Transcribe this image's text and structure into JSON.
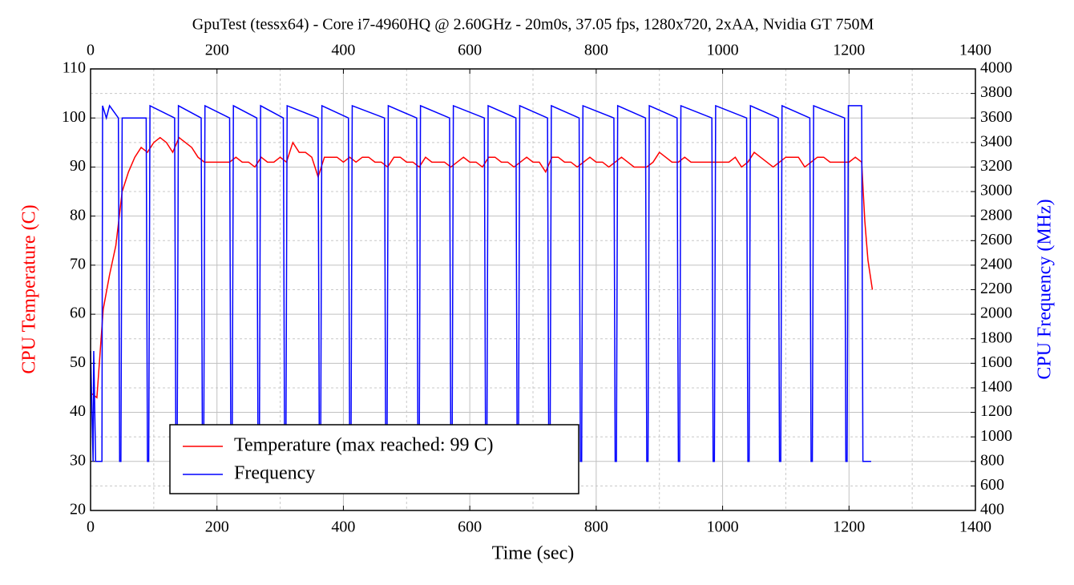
{
  "chart_data": {
    "type": "line",
    "title": "GpuTest (tessx64) - Core i7-4960HQ @ 2.60GHz - 20m0s, 37.05 fps, 1280x720, 2xAA, Nvidia GT 750M",
    "xlabel": "Time (sec)",
    "ylabel": "CPU Temperature (C)",
    "y2label": "CPU Frequency (MHz)",
    "ylabel_color": "#ff0000",
    "y2label_color": "#0000ff",
    "xlim": [
      0,
      1400
    ],
    "xticks": [
      0,
      200,
      400,
      600,
      800,
      1000,
      1200,
      1400
    ],
    "ylim": [
      20,
      110
    ],
    "yticks": [
      20,
      30,
      40,
      50,
      60,
      70,
      80,
      90,
      100,
      110
    ],
    "y2lim": [
      400,
      4000
    ],
    "y2ticks": [
      400,
      600,
      800,
      1000,
      1200,
      1400,
      1600,
      1800,
      2000,
      2200,
      2400,
      2600,
      2800,
      3000,
      3200,
      3400,
      3600,
      3800,
      4000
    ],
    "grid": true,
    "legend": "lower left",
    "series": [
      {
        "name": "Temperature (max reached: 99 C)",
        "color": "#ff0000",
        "x": [
          0,
          10,
          20,
          30,
          40,
          50,
          60,
          70,
          80,
          90,
          100,
          110,
          120,
          130,
          140,
          150,
          160,
          170,
          180,
          190,
          200,
          210,
          220,
          230,
          240,
          250,
          260,
          270,
          280,
          290,
          300,
          310,
          320,
          330,
          340,
          350,
          360,
          370,
          380,
          390,
          400,
          410,
          420,
          430,
          440,
          450,
          460,
          470,
          480,
          490,
          500,
          510,
          520,
          530,
          540,
          550,
          560,
          570,
          580,
          590,
          600,
          610,
          620,
          630,
          640,
          650,
          660,
          670,
          680,
          690,
          700,
          710,
          720,
          730,
          740,
          750,
          760,
          770,
          780,
          790,
          800,
          810,
          820,
          830,
          840,
          850,
          860,
          870,
          880,
          890,
          900,
          910,
          920,
          930,
          940,
          950,
          960,
          970,
          980,
          990,
          1000,
          1010,
          1020,
          1030,
          1040,
          1050,
          1060,
          1070,
          1080,
          1090,
          1100,
          1110,
          1120,
          1130,
          1140,
          1150,
          1160,
          1170,
          1180,
          1190,
          1200,
          1210,
          1220,
          1225,
          1230,
          1237
        ],
        "values": [
          44,
          43,
          61,
          68,
          74,
          85,
          89,
          92,
          94,
          93,
          95,
          96,
          95,
          93,
          96,
          95,
          94,
          92,
          91,
          91,
          91,
          91,
          91,
          92,
          91,
          91,
          90,
          92,
          91,
          91,
          92,
          91,
          95,
          93,
          93,
          92,
          88,
          92,
          92,
          92,
          91,
          92,
          91,
          92,
          92,
          91,
          91,
          90,
          92,
          92,
          91,
          91,
          90,
          92,
          91,
          91,
          91,
          90,
          91,
          92,
          91,
          91,
          90,
          92,
          92,
          91,
          91,
          90,
          91,
          92,
          91,
          91,
          89,
          92,
          92,
          91,
          91,
          90,
          91,
          92,
          91,
          91,
          90,
          91,
          92,
          91,
          90,
          90,
          90,
          91,
          93,
          92,
          91,
          91,
          92,
          91,
          91,
          91,
          91,
          91,
          91,
          91,
          92,
          90,
          91,
          93,
          92,
          91,
          90,
          91,
          92,
          92,
          92,
          90,
          91,
          92,
          92,
          91,
          91,
          91,
          91,
          92,
          91,
          79,
          71,
          65
        ]
      },
      {
        "name": "Frequency",
        "color": "#0000ff",
        "axis": "y2",
        "x": [
          0,
          4,
          5,
          8,
          9,
          18,
          19,
          25,
          30,
          44,
          46,
          48,
          50,
          88,
          90,
          92,
          94,
          133,
          135,
          137,
          139,
          175,
          177,
          179,
          181,
          220,
          222,
          224,
          226,
          263,
          265,
          267,
          269,
          305,
          307,
          309,
          311,
          360,
          362,
          364,
          366,
          408,
          410,
          412,
          414,
          465,
          467,
          469,
          471,
          516,
          518,
          520,
          522,
          568,
          570,
          572,
          574,
          623,
          625,
          627,
          629,
          673,
          675,
          677,
          679,
          723,
          725,
          727,
          729,
          773,
          775,
          777,
          779,
          828,
          830,
          832,
          834,
          878,
          880,
          882,
          884,
          928,
          930,
          932,
          934,
          983,
          985,
          987,
          989,
          1038,
          1040,
          1042,
          1044,
          1088,
          1090,
          1092,
          1094,
          1138,
          1140,
          1142,
          1144,
          1193,
          1195,
          1197,
          1199,
          1220,
          1222,
          1224,
          1235
        ],
        "values": [
          1700,
          800,
          1700,
          800,
          800,
          800,
          3700,
          3600,
          3700,
          3600,
          800,
          800,
          3600,
          3600,
          800,
          800,
          3700,
          3600,
          800,
          800,
          3700,
          3600,
          800,
          800,
          3700,
          3600,
          800,
          800,
          3700,
          3600,
          800,
          800,
          3700,
          3600,
          800,
          800,
          3700,
          3600,
          800,
          800,
          3700,
          3600,
          800,
          800,
          3700,
          3600,
          800,
          800,
          3700,
          3600,
          800,
          800,
          3700,
          3600,
          800,
          800,
          3700,
          3600,
          800,
          800,
          3700,
          3600,
          800,
          800,
          3700,
          3600,
          800,
          800,
          3700,
          3600,
          800,
          800,
          3700,
          3600,
          800,
          800,
          3700,
          3600,
          800,
          800,
          3700,
          3600,
          800,
          800,
          3700,
          3600,
          800,
          800,
          3700,
          3600,
          800,
          800,
          3700,
          3600,
          800,
          800,
          3700,
          3600,
          800,
          800,
          3700,
          3600,
          800,
          800,
          3700,
          3700,
          800,
          800,
          800
        ]
      }
    ]
  }
}
